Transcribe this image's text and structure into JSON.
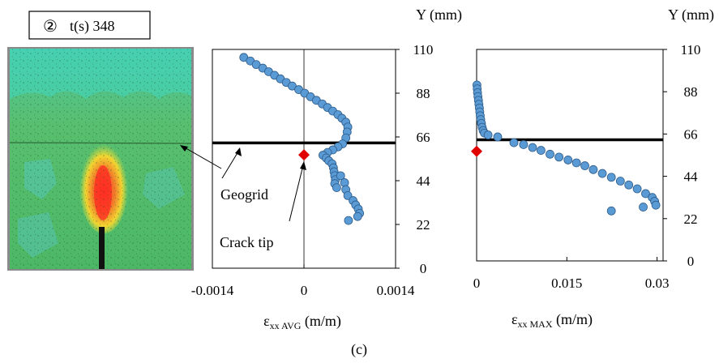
{
  "photo": {
    "step_badge": "②",
    "time_label": "t(s) 348"
  },
  "annotations": {
    "geogrid": "Geogrid",
    "crack_tip": "Crack tip"
  },
  "caption": "(c)",
  "colors": {
    "marker_fill": "#5b9bd5",
    "marker_stroke": "#2e5c8a",
    "geogrid_line": "#000000",
    "crack_tip_marker": "#e00000"
  },
  "chart_data": [
    {
      "type": "scatter",
      "x_label_main": "ε",
      "x_label_sub": "xx AVG",
      "x_label_unit": " (m/m)",
      "y_label": "Y (mm)",
      "xlim": [
        -0.0014,
        0.0014
      ],
      "ylim": [
        0,
        110
      ],
      "x_ticks": [
        -0.0014,
        0,
        0.0014
      ],
      "x_tick_labels": [
        "-0.0014",
        "0",
        "0.0014"
      ],
      "y_ticks": [
        0,
        22,
        44,
        66,
        88,
        110
      ],
      "y_tick_labels": [
        "0",
        "22",
        "44",
        "66",
        "88",
        "110"
      ],
      "geogrid_y": 63,
      "crack_tip": {
        "x": 0,
        "y": 57
      },
      "series": [
        {
          "points": [
            [
              -0.00092,
              106
            ],
            [
              -0.00082,
              104.2
            ],
            [
              -0.00073,
              102.4
            ],
            [
              -0.00063,
              100.6
            ],
            [
              -0.00054,
              98.8
            ],
            [
              -0.00045,
              97
            ],
            [
              -0.00036,
              95.2
            ],
            [
              -0.00027,
              93.4
            ],
            [
              -0.00018,
              91.6
            ],
            [
              -8e-05,
              89.8
            ],
            [
              1e-05,
              88
            ],
            [
              0.0001,
              86.2
            ],
            [
              0.00019,
              84.4
            ],
            [
              0.00028,
              82.6
            ],
            [
              0.00036,
              80.8
            ],
            [
              0.00044,
              79
            ],
            [
              0.00052,
              77.2
            ],
            [
              0.00058,
              75.4
            ],
            [
              0.00064,
              73.4
            ],
            [
              0.00067,
              71
            ],
            [
              0.00066,
              68.5
            ],
            [
              0.00064,
              65.5
            ],
            [
              0.00059,
              62.5
            ],
            [
              0.00052,
              61
            ],
            [
              0.00044,
              59.5
            ],
            [
              0.00036,
              58.2
            ],
            [
              0.00029,
              56.8
            ],
            [
              0.00034,
              55.4
            ],
            [
              0.00038,
              54
            ],
            [
              0.00043,
              52.5
            ],
            [
              0.00045,
              50.5
            ],
            [
              0.00046,
              48.5
            ],
            [
              0.00047,
              46.5
            ],
            [
              0.00048,
              44.5
            ],
            [
              0.00047,
              42.5
            ],
            [
              0.0005,
              40.5
            ],
            [
              0.00056,
              46.5
            ],
            [
              0.00062,
              43
            ],
            [
              0.00064,
              39.5
            ],
            [
              0.00067,
              36.5
            ],
            [
              0.00075,
              34
            ],
            [
              0.00079,
              31.8
            ],
            [
              0.00083,
              29.8
            ],
            [
              0.00085,
              27.6
            ],
            [
              0.00082,
              26
            ],
            [
              0.00068,
              24
            ]
          ]
        }
      ]
    },
    {
      "type": "scatter",
      "x_label_main": "ε",
      "x_label_sub": "xx MAX",
      "x_label_unit": " (m/m)",
      "y_label": "Y (mm)",
      "xlim": [
        0,
        0.031
      ],
      "ylim": [
        0,
        110
      ],
      "x_ticks": [
        0,
        0.015,
        0.03
      ],
      "x_tick_labels": [
        "0",
        "0.015",
        "0.03"
      ],
      "y_ticks": [
        0,
        22,
        44,
        66,
        88,
        110
      ],
      "y_tick_labels": [
        "0",
        "22",
        "44",
        "66",
        "88",
        "110"
      ],
      "geogrid_y": 63,
      "crack_tip": {
        "x": 0,
        "y": 57
      },
      "series": [
        {
          "points": [
            [
              5e-05,
              91.5
            ],
            [
              0.0001,
              89.5
            ],
            [
              0.00015,
              87.5
            ],
            [
              0.00022,
              85.5
            ],
            [
              0.0003,
              83.5
            ],
            [
              0.00038,
              81.5
            ],
            [
              0.00046,
              79.5
            ],
            [
              0.00052,
              77.5
            ],
            [
              0.0006,
              75.5
            ],
            [
              0.00068,
              73.5
            ],
            [
              0.0008,
              71.5
            ],
            [
              0.00092,
              69.5
            ],
            [
              0.00108,
              67.8
            ],
            [
              0.0013,
              66.5
            ],
            [
              0.0019,
              65.5
            ],
            [
              0.0035,
              64.5
            ],
            [
              0.0062,
              61.5
            ],
            [
              0.0078,
              60.5
            ],
            [
              0.0093,
              59
            ],
            [
              0.0107,
              57.5
            ],
            [
              0.0122,
              55.5
            ],
            [
              0.0137,
              54
            ],
            [
              0.0152,
              52.5
            ],
            [
              0.0166,
              51
            ],
            [
              0.018,
              49.5
            ],
            [
              0.0194,
              47.5
            ],
            [
              0.0209,
              45.5
            ],
            [
              0.0224,
              43.5
            ],
            [
              0.0239,
              41.5
            ],
            [
              0.0253,
              39.5
            ],
            [
              0.0267,
              37.5
            ],
            [
              0.0281,
              35
            ],
            [
              0.0292,
              33
            ],
            [
              0.0296,
              31
            ],
            [
              0.0298,
              29
            ],
            [
              0.0277,
              28
            ],
            [
              0.0224,
              26
            ]
          ]
        }
      ]
    }
  ]
}
